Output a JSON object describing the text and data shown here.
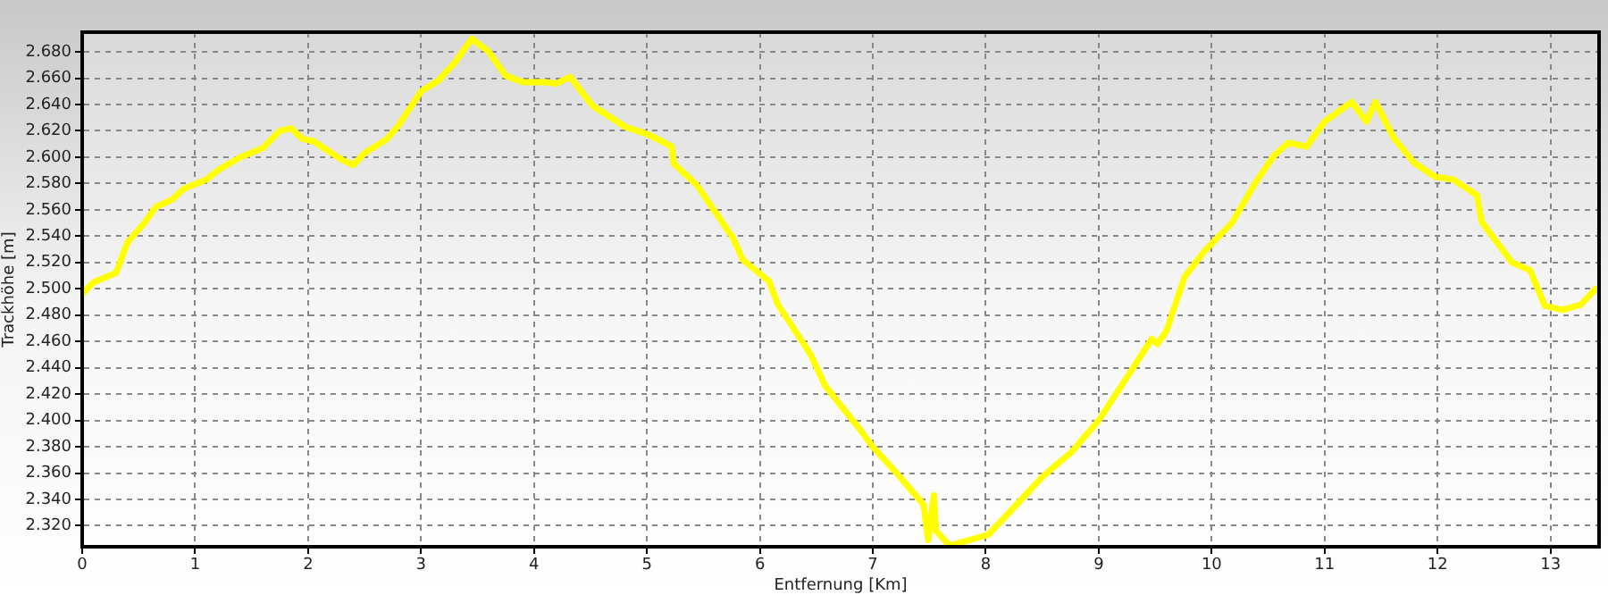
{
  "chart_data": {
    "type": "line",
    "xlabel": "Entfernung [Km]",
    "ylabel": "Trackhöhe [m]",
    "xlim": [
      0,
      13.43
    ],
    "ylim": [
      2304,
      2695
    ],
    "xticks": [
      0,
      1,
      2,
      3,
      4,
      5,
      6,
      7,
      8,
      9,
      10,
      11,
      12,
      13
    ],
    "yticks": [
      {
        "value": 2320,
        "label": "2.320"
      },
      {
        "value": 2340,
        "label": "2.340"
      },
      {
        "value": 2360,
        "label": "2.360"
      },
      {
        "value": 2380,
        "label": "2.380"
      },
      {
        "value": 2400,
        "label": "2.400"
      },
      {
        "value": 2420,
        "label": "2.420"
      },
      {
        "value": 2440,
        "label": "2.440"
      },
      {
        "value": 2460,
        "label": "2.460"
      },
      {
        "value": 2480,
        "label": "2.480"
      },
      {
        "value": 2500,
        "label": "2.500"
      },
      {
        "value": 2520,
        "label": "2.520"
      },
      {
        "value": 2540,
        "label": "2.540"
      },
      {
        "value": 2560,
        "label": "2.560"
      },
      {
        "value": 2580,
        "label": "2.580"
      },
      {
        "value": 2600,
        "label": "2.600"
      },
      {
        "value": 2620,
        "label": "2.620"
      },
      {
        "value": 2640,
        "label": "2.640"
      },
      {
        "value": 2660,
        "label": "2.660"
      },
      {
        "value": 2680,
        "label": "2.680"
      }
    ],
    "grid": true,
    "legend": false,
    "marker": "none",
    "line_style": "solid",
    "x": [
      0,
      0.1,
      0.3,
      0.4,
      0.55,
      0.65,
      0.8,
      0.9,
      1.1,
      1.2,
      1.4,
      1.6,
      1.75,
      1.85,
      1.95,
      2.05,
      2.3,
      2.4,
      2.5,
      2.7,
      2.8,
      3.0,
      3.15,
      3.3,
      3.45,
      3.6,
      3.75,
      3.9,
      4.1,
      4.2,
      4.32,
      4.52,
      4.81,
      5.02,
      5.22,
      5.24,
      5.44,
      5.76,
      5.85,
      6.08,
      6.16,
      6.45,
      6.58,
      6.87,
      7.0,
      7.19,
      7.45,
      7.49,
      7.54,
      7.56,
      7.68,
      7.81,
      8.02,
      8.23,
      8.5,
      8.76,
      9.0,
      9.29,
      9.47,
      9.52,
      9.6,
      9.76,
      9.94,
      10.18,
      10.39,
      10.55,
      10.68,
      10.84,
      11.0,
      11.24,
      11.37,
      11.45,
      11.61,
      11.79,
      11.98,
      12.14,
      12.35,
      12.39,
      12.66,
      12.82,
      12.95,
      13.11,
      13.27,
      13.4
    ],
    "series": [
      {
        "color": "#ffff00",
        "values": [
          2496,
          2505,
          2512,
          2535,
          2550,
          2562,
          2568,
          2576,
          2583,
          2590,
          2600,
          2607,
          2620,
          2622,
          2614,
          2612,
          2598,
          2594,
          2603,
          2614,
          2624,
          2650,
          2658,
          2672,
          2690,
          2680,
          2662,
          2657,
          2657,
          2656,
          2661,
          2639,
          2623,
          2617,
          2608,
          2595,
          2579,
          2539,
          2522,
          2506,
          2488,
          2450,
          2426,
          2395,
          2380,
          2362,
          2336,
          2309,
          2343,
          2316,
          2305,
          2308,
          2313,
          2332,
          2357,
          2376,
          2400,
          2438,
          2462,
          2458,
          2468,
          2509,
          2529,
          2550,
          2581,
          2601,
          2611,
          2608,
          2627,
          2642,
          2627,
          2642,
          2615,
          2596,
          2585,
          2583,
          2571,
          2551,
          2520,
          2514,
          2487,
          2484,
          2488,
          2500
        ]
      }
    ]
  }
}
